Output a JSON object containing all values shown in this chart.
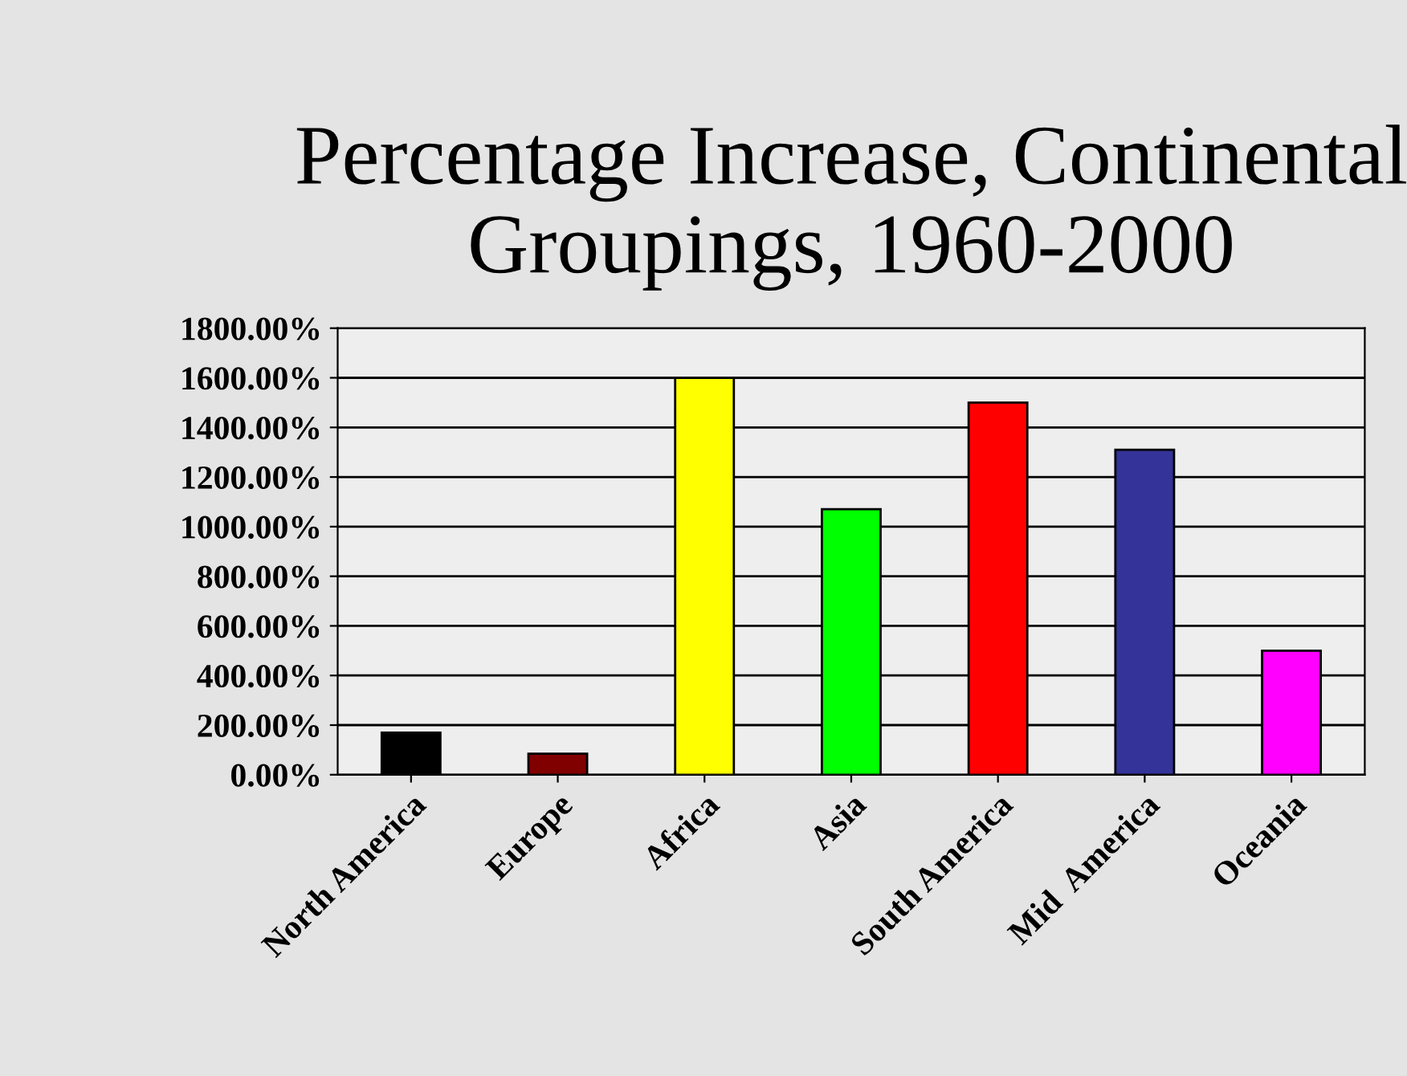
{
  "chart_data": {
    "type": "bar",
    "title": "Percentage Increase, Continental\nGroupings, 1960-2000",
    "categories": [
      "North America",
      "Europe",
      "Africa",
      "Asia",
      "South America",
      "Mid  America",
      "Oceania"
    ],
    "values": [
      170,
      85,
      1600,
      1070,
      1500,
      1310,
      500
    ],
    "colors": [
      "#000000",
      "#800000",
      "#ffff00",
      "#00ff00",
      "#ff0000",
      "#333399",
      "#ff00ff"
    ],
    "ylim": [
      0,
      1800
    ],
    "yticks": [
      {
        "value": 0,
        "label": "0.00%"
      },
      {
        "value": 200,
        "label": "200.00%"
      },
      {
        "value": 400,
        "label": "400.00%"
      },
      {
        "value": 600,
        "label": "600.00%"
      },
      {
        "value": 800,
        "label": "800.00%"
      },
      {
        "value": 1000,
        "label": "1000.00%"
      },
      {
        "value": 1200,
        "label": "1200.00%"
      },
      {
        "value": 1400,
        "label": "1400.00%"
      },
      {
        "value": 1600,
        "label": "1600.00%"
      },
      {
        "value": 1800,
        "label": "1800.00%"
      }
    ],
    "grid": "y"
  }
}
